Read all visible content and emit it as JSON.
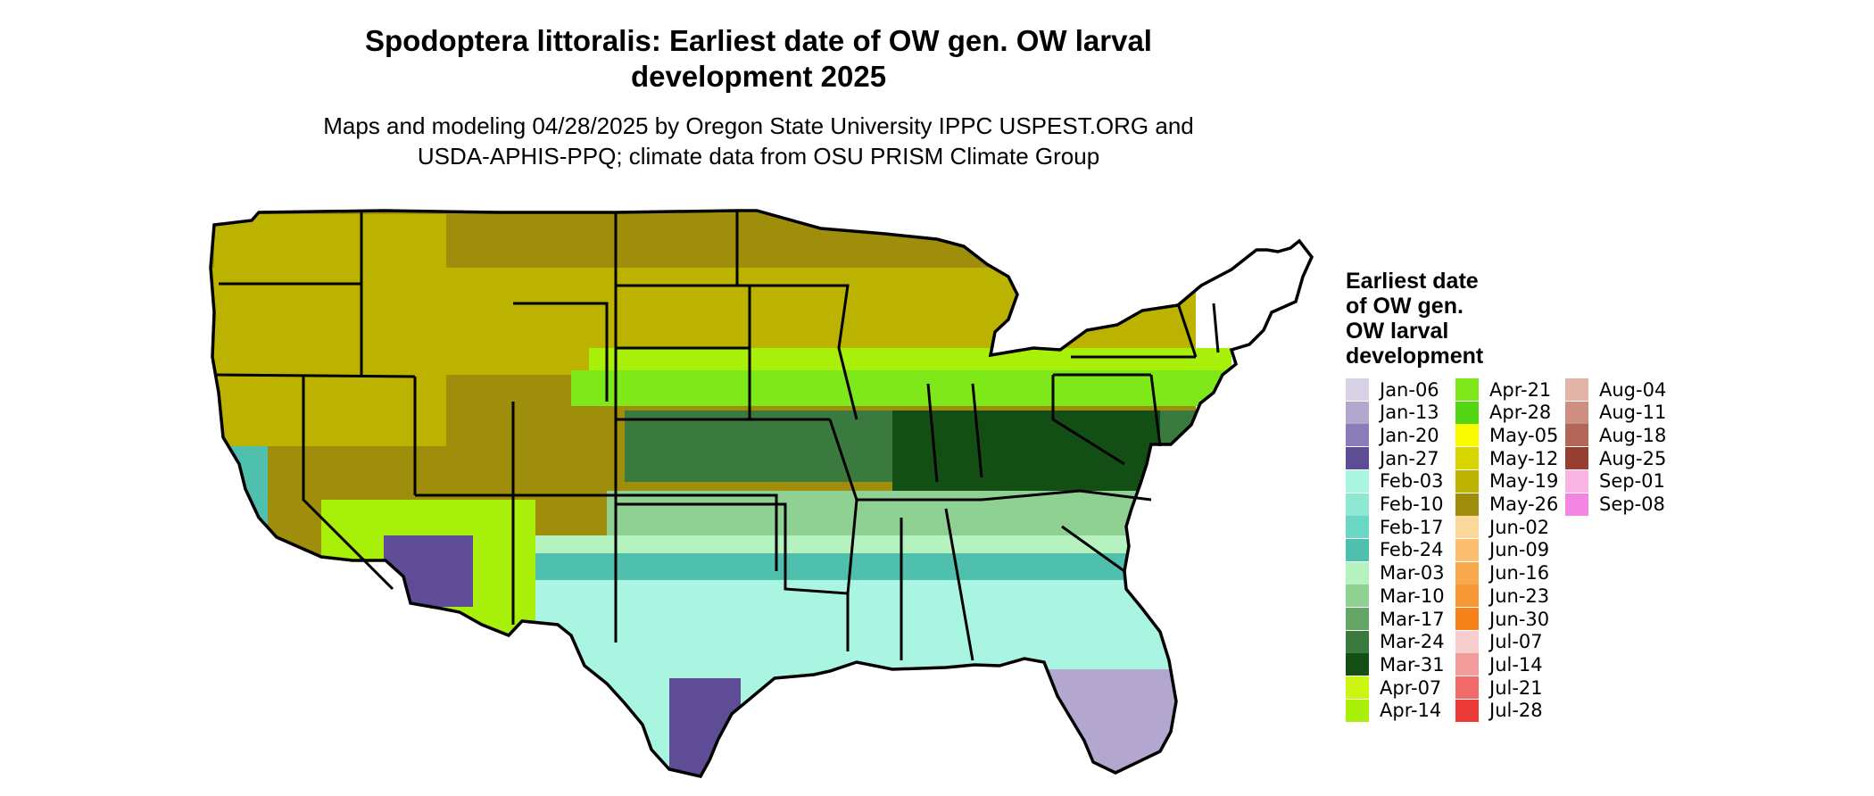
{
  "title": {
    "line1": "Spodoptera littoralis: Earliest date of OW gen. OW larval",
    "line2": "development 2025"
  },
  "subtitle": {
    "line1": "Maps and modeling 04/28/2025 by Oregon State University IPPC USPEST.ORG and",
    "line2": "USDA-APHIS-PPQ; climate data from OSU PRISM Climate Group"
  },
  "legend": {
    "title_lines": [
      "Earliest date",
      "of OW gen.",
      "OW larval",
      "development"
    ],
    "items": [
      {
        "label": "Jan-06",
        "color": "#d9d1e6"
      },
      {
        "label": "Jan-13",
        "color": "#b3a7cf"
      },
      {
        "label": "Jan-20",
        "color": "#8b7bb8"
      },
      {
        "label": "Jan-27",
        "color": "#5e4d96"
      },
      {
        "label": "Feb-03",
        "color": "#aaf5e2"
      },
      {
        "label": "Feb-10",
        "color": "#8ee8d2"
      },
      {
        "label": "Feb-17",
        "color": "#6ad8c4"
      },
      {
        "label": "Feb-24",
        "color": "#4fbfae"
      },
      {
        "label": "Mar-03",
        "color": "#b6f1c0"
      },
      {
        "label": "Mar-10",
        "color": "#8fd192"
      },
      {
        "label": "Mar-17",
        "color": "#65a568"
      },
      {
        "label": "Mar-24",
        "color": "#3a7a3e"
      },
      {
        "label": "Mar-31",
        "color": "#134f15"
      },
      {
        "label": "Apr-07",
        "color": "#ccf511"
      },
      {
        "label": "Apr-14",
        "color": "#a8f00a"
      },
      {
        "label": "Apr-21",
        "color": "#7ee81a"
      },
      {
        "label": "Apr-28",
        "color": "#54d614"
      },
      {
        "label": "May-05",
        "color": "#fbfb00"
      },
      {
        "label": "May-12",
        "color": "#d8d400"
      },
      {
        "label": "May-19",
        "color": "#bcb300"
      },
      {
        "label": "May-26",
        "color": "#9f8d0c"
      },
      {
        "label": "Jun-02",
        "color": "#fcd89a"
      },
      {
        "label": "Jun-09",
        "color": "#fbbf6f"
      },
      {
        "label": "Jun-16",
        "color": "#f8a94e"
      },
      {
        "label": "Jun-23",
        "color": "#f89735"
      },
      {
        "label": "Jun-30",
        "color": "#f5811a"
      },
      {
        "label": "Jul-07",
        "color": "#f7cdcd"
      },
      {
        "label": "Jul-14",
        "color": "#f49b9b"
      },
      {
        "label": "Jul-21",
        "color": "#f16a6a"
      },
      {
        "label": "Jul-28",
        "color": "#ee3939"
      },
      {
        "label": "Aug-04",
        "color": "#e2b4a8"
      },
      {
        "label": "Aug-11",
        "color": "#cc8f80"
      },
      {
        "label": "Aug-18",
        "color": "#b36758"
      },
      {
        "label": "Aug-25",
        "color": "#963f30"
      },
      {
        "label": "Sep-01",
        "color": "#f8b4e2"
      },
      {
        "label": "Sep-08",
        "color": "#f585e2"
      }
    ]
  }
}
